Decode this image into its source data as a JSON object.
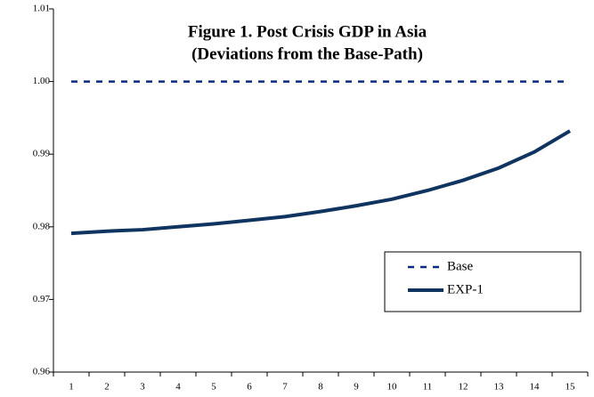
{
  "chart_data": {
    "type": "line",
    "title": "Figure 1. Post Crisis GDP in Asia",
    "subtitle": "(Deviations from the Base-Path)",
    "categories": [
      "1",
      "2",
      "3",
      "4",
      "5",
      "6",
      "7",
      "8",
      "9",
      "10",
      "11",
      "12",
      "13",
      "14",
      "15"
    ],
    "series": [
      {
        "name": "Base",
        "color": "#0b2a80",
        "dash": true,
        "values": [
          1,
          1,
          1,
          1,
          1,
          1,
          1,
          1,
          1,
          1,
          1,
          1,
          1,
          1,
          1
        ]
      },
      {
        "name": "EXP-1",
        "color": "#0f3460",
        "dash": false,
        "values": [
          0.9791,
          0.9794,
          0.9796,
          0.98,
          0.9804,
          0.9809,
          0.9814,
          0.9821,
          0.9829,
          0.9838,
          0.985,
          0.9864,
          0.9881,
          0.9903,
          0.9932
        ]
      }
    ],
    "ylim": [
      0.96,
      1.01
    ],
    "yticks": [
      0.96,
      0.97,
      0.98,
      0.99,
      {
        "value": 1,
        "label": "1.00"
      },
      1.01
    ],
    "grid": false,
    "legend": "lower right"
  }
}
